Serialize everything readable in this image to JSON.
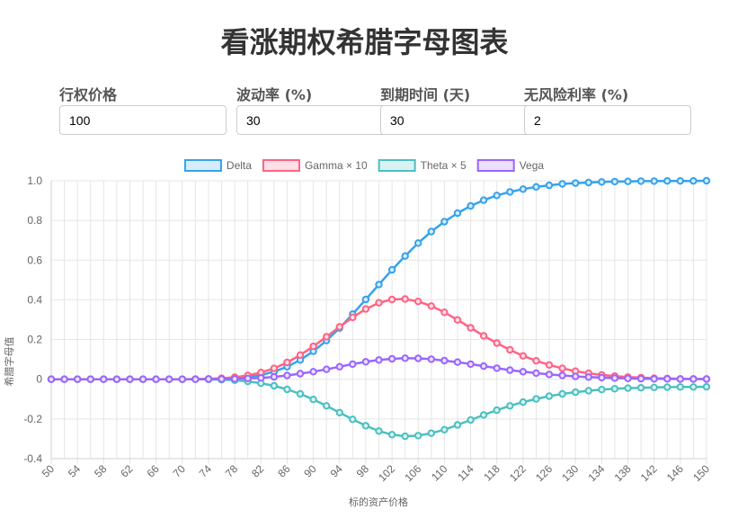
{
  "page": {
    "title": "看涨期权希腊字母图表"
  },
  "params": [
    {
      "label": "行权价格",
      "value": "100"
    },
    {
      "label": "波动率 (%)",
      "value": "30"
    },
    {
      "label": "到期时间 (天)",
      "value": "30"
    },
    {
      "label": "无风险利率 (%)",
      "value": "2"
    }
  ],
  "chart_data": {
    "type": "line",
    "xlabel": "标的资产价格",
    "ylabel": "希腊字母值",
    "xlim": [
      50,
      150
    ],
    "ylim": [
      -0.4,
      1.0
    ],
    "x_step": 2,
    "x_tick_labels": [
      "50",
      "54",
      "58",
      "62",
      "66",
      "70",
      "74",
      "78",
      "82",
      "86",
      "90",
      "94",
      "98",
      "102",
      "106",
      "110",
      "114",
      "118",
      "122",
      "126",
      "130",
      "134",
      "138",
      "142",
      "146",
      "150"
    ],
    "y_ticks": [
      -0.4,
      -0.2,
      0,
      0.2,
      0.4,
      0.6,
      0.8,
      1.0
    ],
    "y_tick_labels": [
      "-0.4",
      "-0.2",
      "0",
      "0.2",
      "0.4",
      "0.6",
      "0.8",
      "1.0"
    ],
    "grid": true,
    "legend_position": "top",
    "x": [
      50,
      52,
      54,
      56,
      58,
      60,
      62,
      64,
      66,
      68,
      70,
      72,
      74,
      76,
      78,
      80,
      82,
      84,
      86,
      88,
      90,
      92,
      94,
      96,
      98,
      100,
      102,
      104,
      106,
      108,
      110,
      112,
      114,
      116,
      118,
      120,
      122,
      124,
      126,
      128,
      130,
      132,
      134,
      136,
      138,
      140,
      142,
      144,
      146,
      148,
      150
    ],
    "series": [
      {
        "name": "Delta",
        "color": "#36a2eb",
        "fill": "#d7ecfb",
        "values": [
          0,
          0,
          0,
          0,
          0,
          0,
          0,
          0,
          0,
          0,
          0,
          0,
          0.001,
          0.002,
          0.005,
          0.011,
          0.021,
          0.038,
          0.063,
          0.097,
          0.141,
          0.195,
          0.258,
          0.328,
          0.402,
          0.477,
          0.551,
          0.621,
          0.686,
          0.744,
          0.794,
          0.837,
          0.873,
          0.902,
          0.926,
          0.944,
          0.958,
          0.969,
          0.977,
          0.984,
          0.988,
          0.991,
          0.994,
          0.996,
          0.997,
          0.998,
          0.998,
          0.999,
          0.999,
          0.999,
          1.0
        ]
      },
      {
        "name": "Gamma × 10",
        "color": "#ff6384",
        "fill": "#ffe0e6",
        "values": [
          0,
          0,
          0,
          0,
          0,
          0,
          0,
          0,
          0,
          0,
          0,
          0.001,
          0.002,
          0.005,
          0.01,
          0.019,
          0.034,
          0.055,
          0.085,
          0.122,
          0.166,
          0.214,
          0.264,
          0.312,
          0.354,
          0.385,
          0.402,
          0.404,
          0.392,
          0.369,
          0.337,
          0.299,
          0.259,
          0.219,
          0.182,
          0.148,
          0.118,
          0.093,
          0.072,
          0.055,
          0.041,
          0.03,
          0.022,
          0.016,
          0.011,
          0.008,
          0.005,
          0.004,
          0.002,
          0.002,
          0.001
        ]
      },
      {
        "name": "Theta × 5",
        "color": "#4bc0c0",
        "fill": "#dbf2f2",
        "values": [
          0,
          0,
          0,
          0,
          0,
          0,
          0,
          0,
          0,
          0,
          0,
          0,
          -0.001,
          -0.002,
          -0.005,
          -0.011,
          -0.02,
          -0.033,
          -0.051,
          -0.074,
          -0.102,
          -0.134,
          -0.168,
          -0.202,
          -0.234,
          -0.261,
          -0.279,
          -0.287,
          -0.284,
          -0.272,
          -0.254,
          -0.23,
          -0.205,
          -0.18,
          -0.156,
          -0.134,
          -0.115,
          -0.099,
          -0.085,
          -0.074,
          -0.065,
          -0.058,
          -0.052,
          -0.048,
          -0.045,
          -0.043,
          -0.041,
          -0.04,
          -0.039,
          -0.039,
          -0.038
        ]
      },
      {
        "name": "Vega",
        "color": "#9966ff",
        "fill": "#ebe0ff",
        "values": [
          0,
          0,
          0,
          0,
          0,
          0,
          0,
          0,
          0,
          0,
          0,
          0,
          0.001,
          0.001,
          0.002,
          0.004,
          0.007,
          0.012,
          0.019,
          0.028,
          0.038,
          0.05,
          0.063,
          0.076,
          0.088,
          0.097,
          0.103,
          0.106,
          0.105,
          0.101,
          0.094,
          0.086,
          0.076,
          0.066,
          0.056,
          0.046,
          0.038,
          0.031,
          0.024,
          0.019,
          0.014,
          0.011,
          0.008,
          0.006,
          0.004,
          0.003,
          0.002,
          0.002,
          0.001,
          0.001,
          0.001
        ]
      }
    ]
  }
}
